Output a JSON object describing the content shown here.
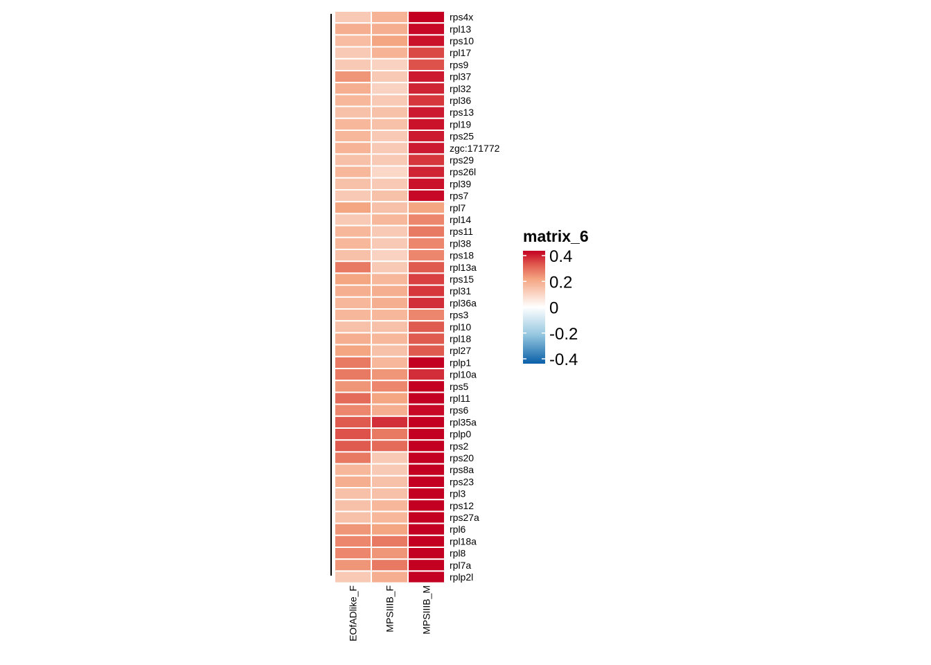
{
  "chart_data": {
    "type": "heatmap",
    "columns": [
      "EOfADlike_F",
      "MPSIIIB_F",
      "MPSIIIB_M"
    ],
    "rows": [
      "rps4x",
      "rpl13",
      "rps10",
      "rpl17",
      "rps9",
      "rpl37",
      "rpl32",
      "rpl36",
      "rps13",
      "rpl19",
      "rps25",
      "zgc:171772",
      "rps29",
      "rps26l",
      "rpl39",
      "rps7",
      "rpl7",
      "rpl14",
      "rps11",
      "rpl38",
      "rps18",
      "rpl13a",
      "rps15",
      "rpl31",
      "rpl36a",
      "rps3",
      "rpl10",
      "rpl18",
      "rpl27",
      "rplp1",
      "rpl10a",
      "rps5",
      "rpl11",
      "rps6",
      "rpl35a",
      "rplp0",
      "rps2",
      "rps20",
      "rps8a",
      "rps23",
      "rpl3",
      "rps12",
      "rps27a",
      "rpl6",
      "rpl18a",
      "rpl8",
      "rpl7a",
      "rplp2l"
    ],
    "values": [
      [
        0.12,
        0.17,
        0.4
      ],
      [
        0.18,
        0.18,
        0.39
      ],
      [
        0.15,
        0.2,
        0.38
      ],
      [
        0.12,
        0.17,
        0.32
      ],
      [
        0.12,
        0.1,
        0.31
      ],
      [
        0.22,
        0.12,
        0.37
      ],
      [
        0.18,
        0.1,
        0.36
      ],
      [
        0.16,
        0.12,
        0.34
      ],
      [
        0.14,
        0.14,
        0.37
      ],
      [
        0.16,
        0.14,
        0.38
      ],
      [
        0.16,
        0.12,
        0.37
      ],
      [
        0.17,
        0.12,
        0.37
      ],
      [
        0.14,
        0.12,
        0.34
      ],
      [
        0.16,
        0.09,
        0.36
      ],
      [
        0.14,
        0.12,
        0.38
      ],
      [
        0.12,
        0.14,
        0.39
      ],
      [
        0.2,
        0.14,
        0.2
      ],
      [
        0.12,
        0.16,
        0.24
      ],
      [
        0.16,
        0.12,
        0.26
      ],
      [
        0.16,
        0.12,
        0.24
      ],
      [
        0.14,
        0.1,
        0.24
      ],
      [
        0.26,
        0.12,
        0.3
      ],
      [
        0.2,
        0.16,
        0.33
      ],
      [
        0.18,
        0.18,
        0.34
      ],
      [
        0.16,
        0.18,
        0.35
      ],
      [
        0.16,
        0.16,
        0.24
      ],
      [
        0.14,
        0.14,
        0.3
      ],
      [
        0.18,
        0.16,
        0.3
      ],
      [
        0.2,
        0.14,
        0.3
      ],
      [
        0.26,
        0.16,
        0.42
      ],
      [
        0.26,
        0.22,
        0.35
      ],
      [
        0.22,
        0.24,
        0.4
      ],
      [
        0.28,
        0.2,
        0.41
      ],
      [
        0.24,
        0.18,
        0.39
      ],
      [
        0.3,
        0.35,
        0.42
      ],
      [
        0.31,
        0.26,
        0.42
      ],
      [
        0.3,
        0.28,
        0.42
      ],
      [
        0.26,
        0.12,
        0.42
      ],
      [
        0.16,
        0.12,
        0.42
      ],
      [
        0.18,
        0.14,
        0.42
      ],
      [
        0.14,
        0.14,
        0.42
      ],
      [
        0.14,
        0.16,
        0.42
      ],
      [
        0.14,
        0.16,
        0.42
      ],
      [
        0.22,
        0.2,
        0.42
      ],
      [
        0.24,
        0.26,
        0.42
      ],
      [
        0.24,
        0.22,
        0.42
      ],
      [
        0.22,
        0.26,
        0.42
      ],
      [
        0.12,
        0.18,
        0.42
      ]
    ],
    "legend": {
      "title": "matrix_6",
      "ticks": [
        0.4,
        0.2,
        0,
        -0.2,
        -0.4
      ],
      "tick_labels": [
        "0.4",
        "0.2",
        "0",
        "-0.2",
        "-0.4"
      ],
      "range": [
        -0.4,
        0.4
      ],
      "placement": "right"
    },
    "color_scale": {
      "low": "#0a5fa8",
      "mid": "#ffffff",
      "high": "#c40022",
      "stops": [
        {
          "value": -0.4,
          "color": "#0a5fa8"
        },
        {
          "value": -0.2,
          "color": "#92c5de"
        },
        {
          "value": 0.0,
          "color": "#ffffff"
        },
        {
          "value": 0.2,
          "color": "#f4a582"
        },
        {
          "value": 0.3,
          "color": "#e05b4f"
        },
        {
          "value": 0.4,
          "color": "#c40022"
        }
      ]
    },
    "row_dendrogram": true
  }
}
